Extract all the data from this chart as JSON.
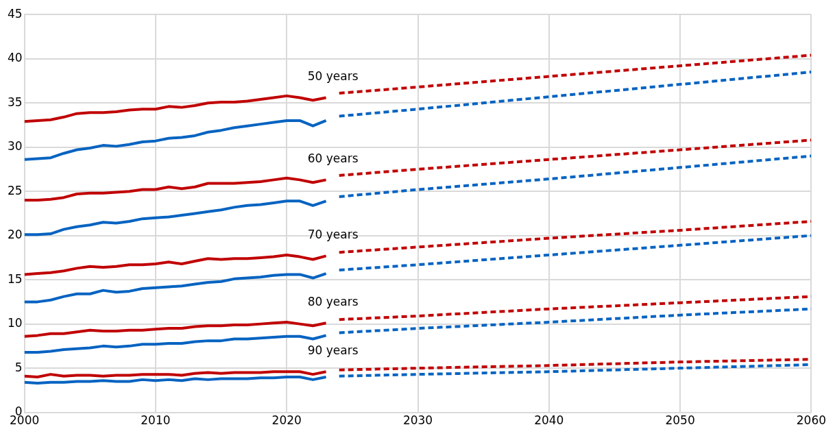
{
  "chart_data": {
    "type": "line",
    "marker": "none",
    "grid": true,
    "legend": false,
    "xlim": [
      2000,
      2060
    ],
    "xticks": [
      2000,
      2010,
      2020,
      2030,
      2040,
      2050,
      2060
    ],
    "ylim": [
      0,
      45
    ],
    "yticks": [
      0,
      5,
      10,
      15,
      20,
      25,
      30,
      35,
      40,
      45
    ],
    "x": [
      2000,
      2001,
      2002,
      2003,
      2004,
      2005,
      2006,
      2007,
      2008,
      2009,
      2010,
      2011,
      2012,
      2013,
      2014,
      2015,
      2016,
      2017,
      2018,
      2019,
      2020,
      2021,
      2022,
      2023
    ],
    "series": [
      {
        "color": "#c00000",
        "line_style": "solid",
        "values": [
          32.9,
          33.0,
          33.1,
          33.4,
          33.8,
          33.9,
          33.9,
          34.0,
          34.2,
          34.3,
          34.3,
          34.6,
          34.5,
          34.7,
          35.0,
          35.1,
          35.1,
          35.2,
          35.4,
          35.6,
          35.8,
          35.6,
          35.3,
          35.6
        ]
      },
      {
        "color": "#0563c1",
        "line_style": "solid",
        "values": [
          28.6,
          28.7,
          28.8,
          29.3,
          29.7,
          29.9,
          30.2,
          30.1,
          30.3,
          30.6,
          30.7,
          31.0,
          31.1,
          31.3,
          31.7,
          31.9,
          32.2,
          32.4,
          32.6,
          32.8,
          33.0,
          33.0,
          32.4,
          33.0
        ]
      },
      {
        "color": "#c00000",
        "line_style": "solid",
        "values": [
          24.0,
          24.0,
          24.1,
          24.3,
          24.7,
          24.8,
          24.8,
          24.9,
          25.0,
          25.2,
          25.2,
          25.5,
          25.3,
          25.5,
          25.9,
          25.9,
          25.9,
          26.0,
          26.1,
          26.3,
          26.5,
          26.3,
          26.0,
          26.3
        ]
      },
      {
        "color": "#0563c1",
        "line_style": "solid",
        "values": [
          20.1,
          20.1,
          20.2,
          20.7,
          21.0,
          21.2,
          21.5,
          21.4,
          21.6,
          21.9,
          22.0,
          22.1,
          22.3,
          22.5,
          22.7,
          22.9,
          23.2,
          23.4,
          23.5,
          23.7,
          23.9,
          23.9,
          23.4,
          23.9
        ]
      },
      {
        "color": "#c00000",
        "line_style": "solid",
        "values": [
          15.6,
          15.7,
          15.8,
          16.0,
          16.3,
          16.5,
          16.4,
          16.5,
          16.7,
          16.7,
          16.8,
          17.0,
          16.8,
          17.1,
          17.4,
          17.3,
          17.4,
          17.4,
          17.5,
          17.6,
          17.8,
          17.6,
          17.3,
          17.7
        ]
      },
      {
        "color": "#0563c1",
        "line_style": "solid",
        "values": [
          12.5,
          12.5,
          12.7,
          13.1,
          13.4,
          13.4,
          13.8,
          13.6,
          13.7,
          14.0,
          14.1,
          14.2,
          14.3,
          14.5,
          14.7,
          14.8,
          15.1,
          15.2,
          15.3,
          15.5,
          15.6,
          15.6,
          15.2,
          15.7
        ]
      },
      {
        "color": "#c00000",
        "line_style": "solid",
        "values": [
          8.6,
          8.7,
          8.9,
          8.9,
          9.1,
          9.3,
          9.2,
          9.2,
          9.3,
          9.3,
          9.4,
          9.5,
          9.5,
          9.7,
          9.8,
          9.8,
          9.9,
          9.9,
          10.0,
          10.1,
          10.2,
          10.0,
          9.8,
          10.1
        ]
      },
      {
        "color": "#0563c1",
        "line_style": "solid",
        "values": [
          6.8,
          6.8,
          6.9,
          7.1,
          7.2,
          7.3,
          7.5,
          7.4,
          7.5,
          7.7,
          7.7,
          7.8,
          7.8,
          8.0,
          8.1,
          8.1,
          8.3,
          8.3,
          8.4,
          8.5,
          8.6,
          8.6,
          8.3,
          8.7
        ]
      },
      {
        "color": "#c00000",
        "line_style": "solid",
        "values": [
          4.1,
          4.0,
          4.3,
          4.1,
          4.2,
          4.2,
          4.1,
          4.2,
          4.2,
          4.3,
          4.3,
          4.3,
          4.2,
          4.4,
          4.5,
          4.4,
          4.5,
          4.5,
          4.5,
          4.6,
          4.6,
          4.6,
          4.3,
          4.6
        ]
      },
      {
        "color": "#0563c1",
        "line_style": "solid",
        "values": [
          3.4,
          3.3,
          3.4,
          3.4,
          3.5,
          3.5,
          3.6,
          3.5,
          3.5,
          3.7,
          3.6,
          3.7,
          3.6,
          3.8,
          3.7,
          3.8,
          3.8,
          3.8,
          3.9,
          3.9,
          4.0,
          4.0,
          3.7,
          4.0
        ]
      },
      {
        "color": "#c00000",
        "line_style": "dashed",
        "x": [
          2024,
          2030,
          2040,
          2050,
          2060
        ],
        "values": [
          36.1,
          36.8,
          38.0,
          39.2,
          40.4
        ]
      },
      {
        "color": "#0563c1",
        "line_style": "dashed",
        "x": [
          2024,
          2030,
          2040,
          2050,
          2060
        ],
        "values": [
          33.5,
          34.3,
          35.7,
          37.1,
          38.5
        ]
      },
      {
        "color": "#c00000",
        "line_style": "dashed",
        "x": [
          2024,
          2030,
          2040,
          2050,
          2060
        ],
        "values": [
          26.8,
          27.5,
          28.6,
          29.7,
          30.8
        ]
      },
      {
        "color": "#0563c1",
        "line_style": "dashed",
        "x": [
          2024,
          2030,
          2040,
          2050,
          2060
        ],
        "values": [
          24.4,
          25.2,
          26.4,
          27.7,
          29.0
        ]
      },
      {
        "color": "#c00000",
        "line_style": "dashed",
        "x": [
          2024,
          2030,
          2040,
          2050,
          2060
        ],
        "values": [
          18.1,
          18.7,
          19.7,
          20.6,
          21.6
        ]
      },
      {
        "color": "#0563c1",
        "line_style": "dashed",
        "x": [
          2024,
          2030,
          2040,
          2050,
          2060
        ],
        "values": [
          16.1,
          16.7,
          17.8,
          18.9,
          20.0
        ]
      },
      {
        "color": "#c00000",
        "line_style": "dashed",
        "x": [
          2024,
          2030,
          2040,
          2050,
          2060
        ],
        "values": [
          10.5,
          10.9,
          11.7,
          12.4,
          13.1
        ]
      },
      {
        "color": "#0563c1",
        "line_style": "dashed",
        "x": [
          2024,
          2030,
          2040,
          2050,
          2060
        ],
        "values": [
          9.0,
          9.5,
          10.2,
          11.0,
          11.7
        ]
      },
      {
        "color": "#c00000",
        "line_style": "dashed",
        "x": [
          2024,
          2030,
          2040,
          2050,
          2060
        ],
        "values": [
          4.8,
          5.0,
          5.3,
          5.7,
          6.0
        ]
      },
      {
        "color": "#0563c1",
        "line_style": "dashed",
        "x": [
          2024,
          2030,
          2040,
          2050,
          2060
        ],
        "values": [
          4.1,
          4.3,
          4.6,
          5.0,
          5.4
        ]
      }
    ],
    "annotations": [
      "50 years",
      "60 years",
      "70 years",
      "80 years",
      "90 years"
    ]
  }
}
